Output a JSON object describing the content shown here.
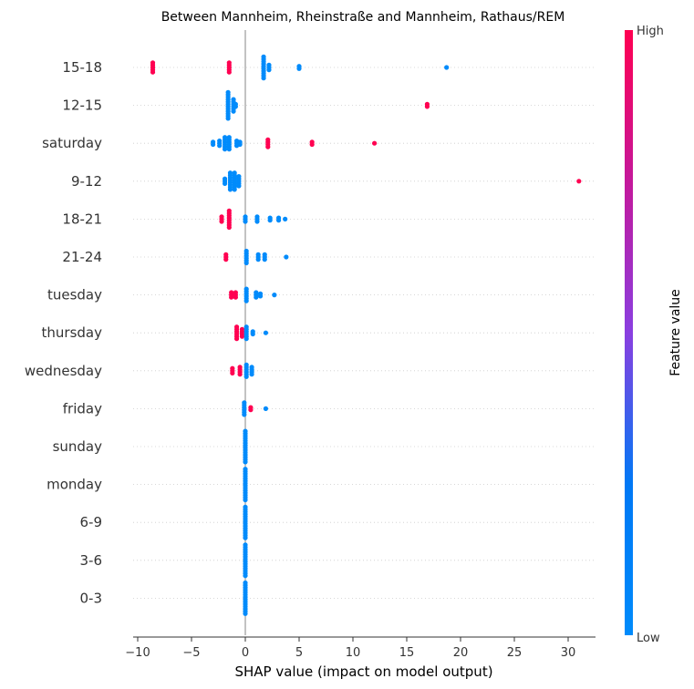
{
  "chart_data": {
    "type": "scatter",
    "title": "Between Mannheim, Rheinstraße and Mannheim, Rathaus/REM",
    "xlabel": "SHAP value (impact on model output)",
    "xlim": [
      -11,
      33
    ],
    "xticks": [
      -10,
      -5,
      0,
      5,
      10,
      15,
      20,
      25,
      30
    ],
    "xtick_labels": [
      "−10",
      "−5",
      "0",
      "5",
      "10",
      "15",
      "20",
      "25",
      "30"
    ],
    "colorbar": {
      "title": "Feature value",
      "high_label": "High",
      "low_label": "Low",
      "high_color": "#ff0051",
      "low_color": "#008bfb"
    },
    "grid": "dotted horizontal",
    "features": [
      {
        "name": "15-18",
        "points": [
          {
            "x": -8.6,
            "v": 1,
            "n": 5
          },
          {
            "x": -1.5,
            "v": 1,
            "n": 5
          },
          {
            "x": 1.7,
            "v": 0,
            "n": 10
          },
          {
            "x": 2.2,
            "v": 0,
            "n": 3
          },
          {
            "x": 5.0,
            "v": 0,
            "n": 2
          },
          {
            "x": 18.7,
            "v": 0,
            "n": 1
          }
        ]
      },
      {
        "name": "12-15",
        "points": [
          {
            "x": -1.6,
            "v": 0,
            "n": 12
          },
          {
            "x": -1.1,
            "v": 0,
            "n": 6
          },
          {
            "x": -0.9,
            "v": 0,
            "n": 2
          },
          {
            "x": 16.9,
            "v": 1,
            "n": 2
          }
        ]
      },
      {
        "name": "saturday",
        "points": [
          {
            "x": -3.0,
            "v": 0,
            "n": 2
          },
          {
            "x": -2.4,
            "v": 0,
            "n": 3
          },
          {
            "x": -1.9,
            "v": 0,
            "n": 6
          },
          {
            "x": -1.5,
            "v": 0,
            "n": 6
          },
          {
            "x": -0.8,
            "v": 0,
            "n": 3
          },
          {
            "x": -0.5,
            "v": 0,
            "n": 2
          },
          {
            "x": 2.1,
            "v": 1,
            "n": 4
          },
          {
            "x": 6.2,
            "v": 1,
            "n": 2
          },
          {
            "x": 12.0,
            "v": 1,
            "n": 1
          }
        ]
      },
      {
        "name": "9-12",
        "points": [
          {
            "x": -1.9,
            "v": 0,
            "n": 3
          },
          {
            "x": -1.4,
            "v": 0,
            "n": 8
          },
          {
            "x": -1.0,
            "v": 0,
            "n": 8
          },
          {
            "x": -0.6,
            "v": 0,
            "n": 5
          },
          {
            "x": 31.0,
            "v": 1,
            "n": 1
          }
        ]
      },
      {
        "name": "18-21",
        "points": [
          {
            "x": -2.2,
            "v": 1,
            "n": 3
          },
          {
            "x": -1.5,
            "v": 1,
            "n": 8
          },
          {
            "x": 0.0,
            "v": 0,
            "n": 3
          },
          {
            "x": 1.1,
            "v": 0,
            "n": 3
          },
          {
            "x": 2.3,
            "v": 0,
            "n": 2
          },
          {
            "x": 3.1,
            "v": 0,
            "n": 2
          },
          {
            "x": 3.7,
            "v": 0,
            "n": 1
          }
        ]
      },
      {
        "name": "21-24",
        "points": [
          {
            "x": -1.8,
            "v": 1,
            "n": 3
          },
          {
            "x": 0.1,
            "v": 0,
            "n": 6
          },
          {
            "x": 1.2,
            "v": 0,
            "n": 3
          },
          {
            "x": 1.8,
            "v": 0,
            "n": 3
          },
          {
            "x": 3.8,
            "v": 0,
            "n": 1
          }
        ]
      },
      {
        "name": "tuesday",
        "points": [
          {
            "x": -1.3,
            "v": 1,
            "n": 3
          },
          {
            "x": -0.9,
            "v": 1,
            "n": 3
          },
          {
            "x": 0.1,
            "v": 0,
            "n": 6
          },
          {
            "x": 1.0,
            "v": 0,
            "n": 3
          },
          {
            "x": 1.4,
            "v": 0,
            "n": 2
          },
          {
            "x": 2.7,
            "v": 0,
            "n": 1
          }
        ]
      },
      {
        "name": "thursday",
        "points": [
          {
            "x": -0.8,
            "v": 1,
            "n": 6
          },
          {
            "x": -0.3,
            "v": 1,
            "n": 4
          },
          {
            "x": 0.1,
            "v": 0,
            "n": 6
          },
          {
            "x": 0.7,
            "v": 0,
            "n": 2
          },
          {
            "x": 1.9,
            "v": 0,
            "n": 1
          }
        ]
      },
      {
        "name": "wednesday",
        "points": [
          {
            "x": -1.2,
            "v": 1,
            "n": 3
          },
          {
            "x": -0.5,
            "v": 1,
            "n": 4
          },
          {
            "x": 0.1,
            "v": 0,
            "n": 6
          },
          {
            "x": 0.6,
            "v": 0,
            "n": 4
          }
        ]
      },
      {
        "name": "friday",
        "points": [
          {
            "x": -0.1,
            "v": 0,
            "n": 6
          },
          {
            "x": 0.5,
            "v": 1,
            "n": 2
          },
          {
            "x": 1.9,
            "v": 0,
            "n": 1
          }
        ]
      },
      {
        "name": "sunday",
        "points": [
          {
            "x": 0.0,
            "v": 0,
            "n": 14
          }
        ]
      },
      {
        "name": "monday",
        "points": [
          {
            "x": 0.0,
            "v": 0,
            "n": 14
          }
        ]
      },
      {
        "name": "6-9",
        "points": [
          {
            "x": 0.0,
            "v": 0,
            "n": 14
          }
        ]
      },
      {
        "name": "3-6",
        "points": [
          {
            "x": 0.0,
            "v": 0,
            "n": 14
          }
        ]
      },
      {
        "name": "0-3",
        "points": [
          {
            "x": 0.0,
            "v": 0,
            "n": 14
          }
        ]
      }
    ]
  }
}
